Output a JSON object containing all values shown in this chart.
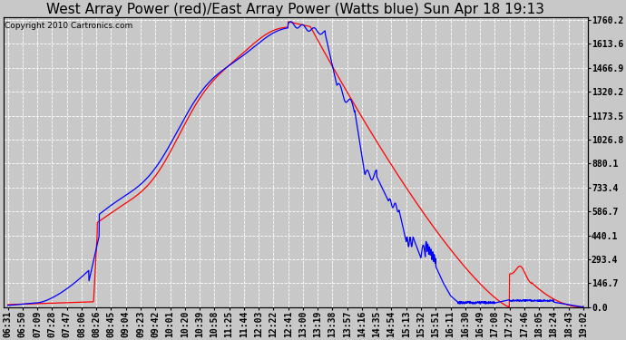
{
  "title": "West Array Power (red)/East Array Power (Watts blue) Sun Apr 18 19:13",
  "copyright_text": "Copyright 2010 Cartronics.com",
  "y_ticks": [
    0.0,
    146.7,
    293.4,
    440.1,
    586.7,
    733.4,
    880.1,
    1026.8,
    1173.5,
    1320.2,
    1466.9,
    1613.6,
    1760.2
  ],
  "x_labels": [
    "06:31",
    "06:50",
    "07:09",
    "07:28",
    "07:47",
    "08:06",
    "08:26",
    "08:45",
    "09:04",
    "09:23",
    "09:42",
    "10:01",
    "10:20",
    "10:39",
    "10:58",
    "11:25",
    "11:44",
    "12:03",
    "12:22",
    "12:41",
    "13:00",
    "13:19",
    "13:38",
    "13:57",
    "14:16",
    "14:35",
    "14:54",
    "15:13",
    "15:32",
    "15:51",
    "16:11",
    "16:30",
    "16:49",
    "17:08",
    "17:27",
    "17:46",
    "18:05",
    "18:24",
    "18:43",
    "19:02"
  ],
  "bg_color": "#c8c8c8",
  "plot_bg_color": "#c8c8c8",
  "grid_color": "#ffffff",
  "line_red_color": "#ff0000",
  "line_blue_color": "#0000ff",
  "title_fontsize": 11,
  "copyright_fontsize": 6.5,
  "tick_fontsize": 7
}
